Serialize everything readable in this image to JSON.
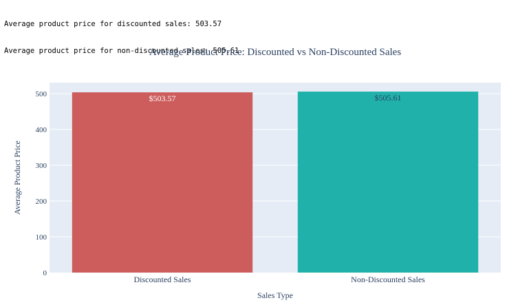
{
  "console_output": {
    "lines": [
      "Average product price for discounted sales: 503.57",
      "Average product price for non-discounted sales: 505.61"
    ]
  },
  "chart_data": {
    "type": "bar",
    "title": "Average Product Price: Discounted vs Non-Discounted Sales",
    "xlabel": "Sales Type",
    "ylabel": "Average Product Price",
    "categories": [
      "Discounted Sales",
      "Non-Discounted Sales"
    ],
    "values": [
      503.57,
      505.61
    ],
    "data_labels": [
      "$503.57",
      "$505.61"
    ],
    "colors": [
      "#cd5c5c",
      "#20b2aa"
    ],
    "label_colors": [
      "#ffffff",
      "#2a3f5f"
    ],
    "yticks": [
      0,
      100,
      200,
      300,
      400,
      500
    ],
    "ylim": [
      0,
      530
    ],
    "grid": true,
    "plot_background": "#e5ecf6"
  }
}
